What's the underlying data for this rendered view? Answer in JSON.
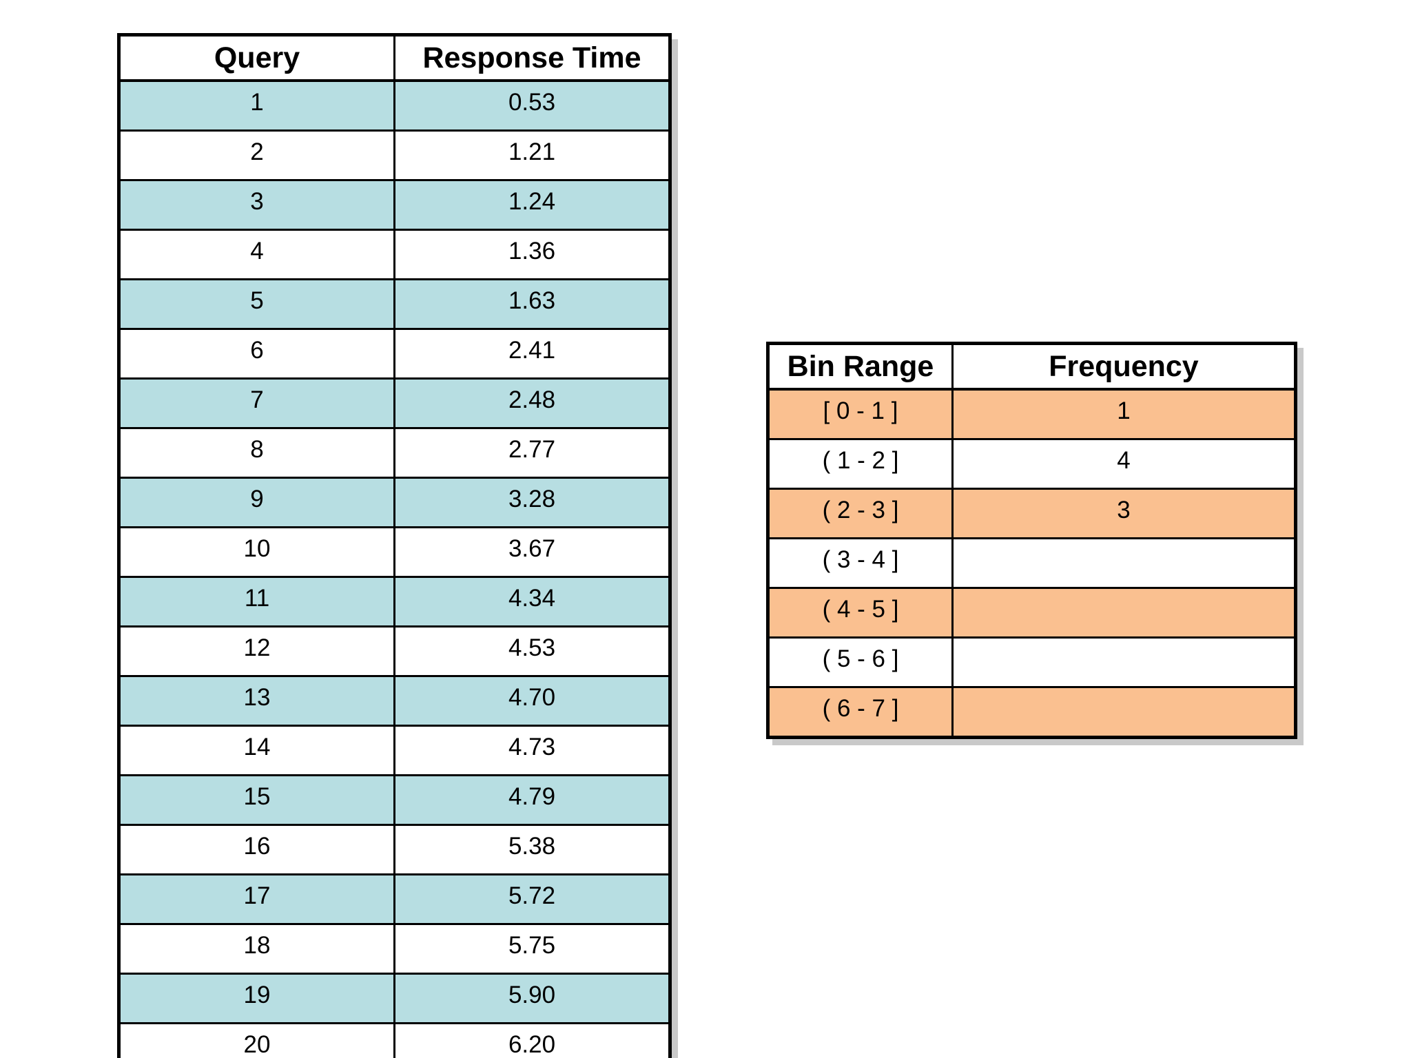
{
  "page": {
    "background": "#ffffff"
  },
  "colors": {
    "teal_row": "#b7dee2",
    "orange_row": "#fac090",
    "border": "#000000",
    "shadow": "#c9c9c9",
    "page_background": "#ffffff"
  },
  "query_table": {
    "headers": [
      "Query",
      "Response Time"
    ],
    "rows": [
      [
        "1",
        "0.53"
      ],
      [
        "2",
        "1.21"
      ],
      [
        "3",
        "1.24"
      ],
      [
        "4",
        "1.36"
      ],
      [
        "5",
        "1.63"
      ],
      [
        "6",
        "2.41"
      ],
      [
        "7",
        "2.48"
      ],
      [
        "8",
        "2.77"
      ],
      [
        "9",
        "3.28"
      ],
      [
        "10",
        "3.67"
      ],
      [
        "11",
        "4.34"
      ],
      [
        "12",
        "4.53"
      ],
      [
        "13",
        "4.70"
      ],
      [
        "14",
        "4.73"
      ],
      [
        "15",
        "4.79"
      ],
      [
        "16",
        "5.38"
      ],
      [
        "17",
        "5.72"
      ],
      [
        "18",
        "5.75"
      ],
      [
        "19",
        "5.90"
      ],
      [
        "20",
        "6.20"
      ]
    ]
  },
  "bin_table": {
    "headers": [
      "Bin Range",
      "Frequency"
    ],
    "rows": [
      [
        "[ 0 - 1 ]",
        "1"
      ],
      [
        "( 1 - 2 ]",
        "4"
      ],
      [
        "( 2 - 3 ]",
        "3"
      ],
      [
        "( 3 - 4 ]",
        ""
      ],
      [
        "( 4 - 5 ]",
        ""
      ],
      [
        "( 5 - 6 ]",
        ""
      ],
      [
        "( 6 - 7 ]",
        ""
      ]
    ]
  },
  "chart_data": [
    {
      "type": "table",
      "columns": [
        "Query",
        "Response Time"
      ],
      "rows": [
        [
          1,
          0.53
        ],
        [
          2,
          1.21
        ],
        [
          3,
          1.24
        ],
        [
          4,
          1.36
        ],
        [
          5,
          1.63
        ],
        [
          6,
          2.41
        ],
        [
          7,
          2.48
        ],
        [
          8,
          2.77
        ],
        [
          9,
          3.28
        ],
        [
          10,
          3.67
        ],
        [
          11,
          4.34
        ],
        [
          12,
          4.53
        ],
        [
          13,
          4.7
        ],
        [
          14,
          4.73
        ],
        [
          15,
          4.79
        ],
        [
          16,
          5.38
        ],
        [
          17,
          5.72
        ],
        [
          18,
          5.75
        ],
        [
          19,
          5.9
        ],
        [
          20,
          6.2
        ]
      ]
    },
    {
      "type": "table",
      "columns": [
        "Bin Range",
        "Frequency"
      ],
      "rows": [
        [
          "[ 0 - 1 ]",
          1
        ],
        [
          "( 1 - 2 ]",
          4
        ],
        [
          "( 2 - 3 ]",
          3
        ],
        [
          "( 3 - 4 ]",
          null
        ],
        [
          "( 4 - 5 ]",
          null
        ],
        [
          "( 5 - 6 ]",
          null
        ],
        [
          "( 6 - 7 ]",
          null
        ]
      ]
    }
  ]
}
